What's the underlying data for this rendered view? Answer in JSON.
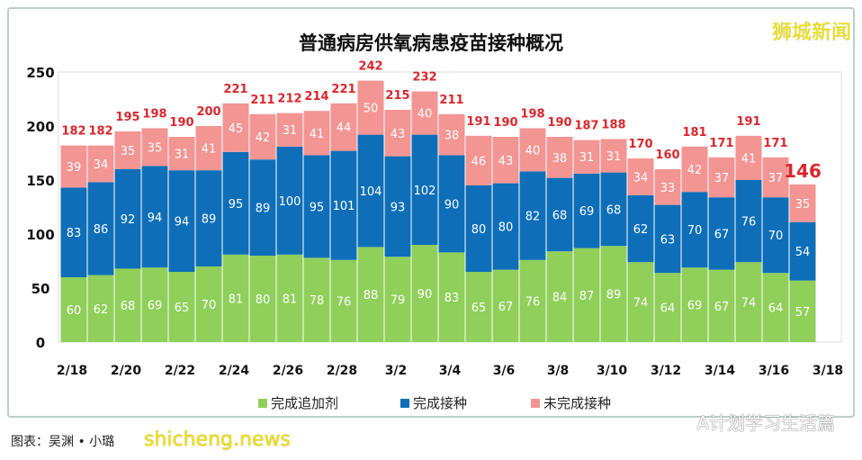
{
  "chart_data": {
    "type": "bar",
    "stacked": true,
    "title": "普通病房供氧病患疫苗接种概况",
    "categories": [
      "2/18",
      "2/19",
      "2/20",
      "2/21",
      "2/22",
      "2/23",
      "2/24",
      "2/25",
      "2/26",
      "2/27",
      "2/28",
      "3/1",
      "3/2",
      "3/3",
      "3/4",
      "3/5",
      "3/6",
      "3/7",
      "3/8",
      "3/9",
      "3/10",
      "3/11",
      "3/12",
      "3/13",
      "3/14",
      "3/15",
      "3/16",
      "3/17"
    ],
    "xtick_labels": [
      "2/18",
      "2/20",
      "2/22",
      "2/24",
      "2/26",
      "2/28",
      "3/2",
      "3/4",
      "3/6",
      "3/8",
      "3/10",
      "3/12",
      "3/14",
      "3/16",
      "3/18"
    ],
    "yticks": [
      0,
      50,
      100,
      150,
      200,
      250
    ],
    "ylim": [
      0,
      250
    ],
    "grid": false,
    "legend_placement": "bottom",
    "series": [
      {
        "name": "完成追加剂",
        "color": "#8fcf5a",
        "values": [
          60,
          62,
          68,
          69,
          65,
          70,
          81,
          80,
          81,
          78,
          76,
          88,
          79,
          90,
          83,
          65,
          67,
          76,
          84,
          87,
          89,
          74,
          64,
          69,
          67,
          74,
          64,
          57
        ]
      },
      {
        "name": "完成接种",
        "color": "#0e6fb8",
        "values": [
          83,
          86,
          92,
          94,
          94,
          89,
          95,
          89,
          100,
          95,
          101,
          104,
          93,
          102,
          90,
          80,
          80,
          82,
          68,
          69,
          68,
          62,
          63,
          70,
          67,
          76,
          70,
          54
        ]
      },
      {
        "name": "未完成接种",
        "color": "#f29593",
        "values": [
          39,
          34,
          35,
          35,
          31,
          41,
          45,
          42,
          31,
          41,
          44,
          50,
          43,
          40,
          38,
          46,
          43,
          40,
          38,
          31,
          31,
          34,
          33,
          42,
          37,
          41,
          37,
          35
        ]
      }
    ],
    "totals": [
      182,
      182,
      195,
      198,
      190,
      200,
      221,
      211,
      212,
      214,
      221,
      242,
      215,
      232,
      211,
      191,
      190,
      198,
      190,
      187,
      188,
      170,
      160,
      181,
      171,
      191,
      171,
      146
    ],
    "total_label_color": "#d9262c"
  },
  "watermarks": {
    "top_right": "狮城新闻",
    "bottom_left": "shicheng.news",
    "bottom_right": "A计划学习生活篇",
    "credit": "图表：吴渊 • 小璐"
  }
}
